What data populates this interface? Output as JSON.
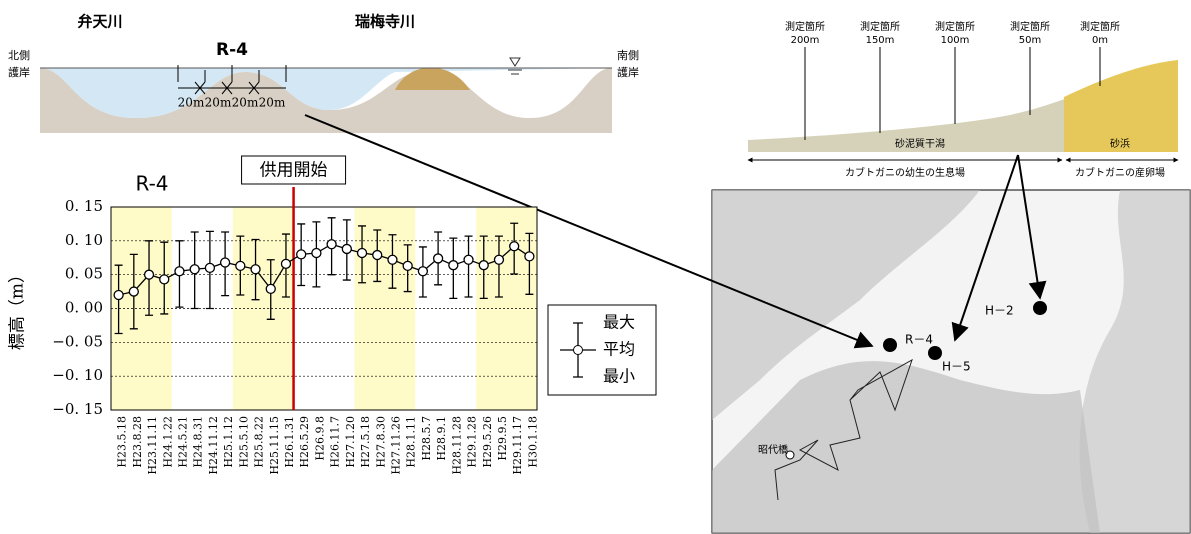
{
  "left_section": {
    "river_left": "弁天川",
    "river_right": "瑞梅寺川",
    "station": "R-4",
    "north_bank": [
      "北側",
      "護岸"
    ],
    "south_bank": [
      "南側",
      "護岸"
    ],
    "spacings": [
      "20m",
      "20m",
      "20m",
      "20m"
    ]
  },
  "right_section": {
    "points": [
      [
        "測定箇所",
        "200m"
      ],
      [
        "測定箇所",
        "150m"
      ],
      [
        "測定箇所",
        "100m"
      ],
      [
        "測定箇所",
        "50m"
      ],
      [
        "測定箇所",
        "0m"
      ]
    ],
    "zone_mud": "砂泥質干潟",
    "zone_sand": "砂浜",
    "range_mud": "カブトガニの幼生の生息場",
    "range_sand": "カブトガニの産卵場"
  },
  "map": {
    "labels": [
      "R－4",
      "H－5",
      "H－2"
    ],
    "bridge": "昭代橋"
  },
  "chart_data": {
    "type": "errorbar",
    "title": "R-4",
    "y_label": "標高（m）",
    "annotation": "供用開始",
    "categories": [
      "H23.5.18",
      "H23.8.28",
      "H23.11.11",
      "H24.1.22",
      "H24.5.21",
      "H24.8.31",
      "H24.11.12",
      "H25.1.12",
      "H25.5.10",
      "H25.8.22",
      "H25.11.15",
      "H26.1.31",
      "H26.5.29",
      "H26.9.8",
      "H26.11.7",
      "H27.1.20",
      "H27.5.18",
      "H27.8.30",
      "H27.11.26",
      "H28.1.11",
      "H28.5.7",
      "H28.9.1",
      "H28.11.28",
      "H29.1.28",
      "H29.5.26",
      "H29.9.5",
      "H29.11.17",
      "H30.1.18"
    ],
    "series": [
      {
        "name": "平均",
        "color": "#000000",
        "values": [
          0.02,
          0.025,
          0.05,
          0.043,
          0.055,
          0.058,
          0.06,
          0.068,
          0.063,
          0.058,
          0.029,
          0.066,
          0.08,
          0.082,
          0.095,
          0.088,
          0.082,
          0.079,
          0.072,
          0.063,
          0.055,
          0.074,
          0.064,
          0.072,
          0.064,
          0.072,
          0.092,
          0.077
        ]
      },
      {
        "name": "最大",
        "color": "#000000",
        "values": [
          0.064,
          0.08,
          0.1,
          0.098,
          0.1,
          0.113,
          0.114,
          0.113,
          0.107,
          0.102,
          0.072,
          0.11,
          0.125,
          0.128,
          0.134,
          0.131,
          0.122,
          0.116,
          0.109,
          0.094,
          0.091,
          0.113,
          0.104,
          0.107,
          0.107,
          0.107,
          0.126,
          0.111
        ]
      },
      {
        "name": "最小",
        "color": "#000000",
        "values": [
          -0.037,
          -0.03,
          -0.01,
          -0.008,
          0.002,
          0,
          0,
          0.019,
          0.02,
          0.013,
          -0.016,
          0.017,
          0.034,
          0.032,
          0.05,
          0.042,
          0.038,
          0.04,
          0.03,
          0.025,
          0.017,
          0.035,
          0.015,
          0.017,
          0.015,
          0.017,
          0.051,
          0.021
        ]
      }
    ],
    "ylim": [
      -0.15,
      0.15
    ],
    "yticks": [
      {
        "value": -0.15,
        "label": "−0. 15"
      },
      {
        "value": -0.1,
        "label": "−0. 10"
      },
      {
        "value": -0.05,
        "label": "−0. 05"
      },
      {
        "value": 0,
        "label": "0. 00"
      },
      {
        "value": 0.05,
        "label": "0. 05"
      },
      {
        "value": 0.1,
        "label": "0. 10"
      },
      {
        "value": 0.15,
        "label": "0. 15"
      }
    ],
    "grid": true,
    "band_color": "#fffbc8",
    "marker_line_color": "#cc0000"
  }
}
